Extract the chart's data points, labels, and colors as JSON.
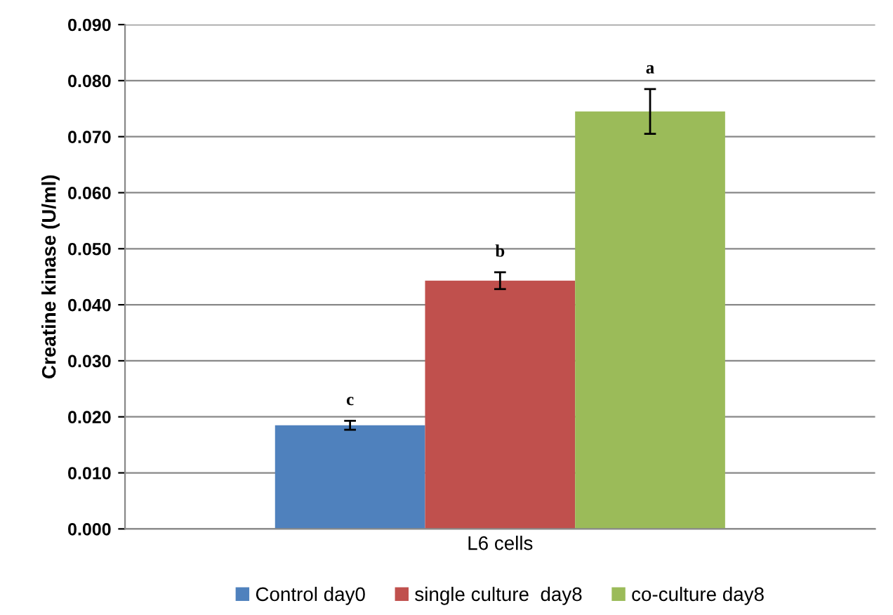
{
  "chart_data": {
    "type": "bar",
    "ylabel": "Creatine kinase (U/ml)",
    "categories": [
      "L6 cells"
    ],
    "series": [
      {
        "name": "Control day0",
        "color": "#4f81bd",
        "values": [
          0.0185
        ],
        "errors": [
          0.0008
        ]
      },
      {
        "name": "single culture  day8",
        "color": "#c0504d",
        "values": [
          0.0443
        ],
        "errors": [
          0.0015
        ]
      },
      {
        "name": "co-culture day8",
        "color": "#9bbb59",
        "values": [
          0.0745
        ],
        "errors": [
          0.004
        ]
      }
    ],
    "annotations": [
      "c",
      "b",
      "a"
    ],
    "ylim": [
      0,
      0.09
    ],
    "yticks": [
      {
        "value": 0,
        "label": "0.000"
      },
      {
        "value": 0.01,
        "label": "0.010"
      },
      {
        "value": 0.02,
        "label": "0.020"
      },
      {
        "value": 0.03,
        "label": "0.030"
      },
      {
        "value": 0.04,
        "label": "0.040"
      },
      {
        "value": 0.05,
        "label": "0.050"
      },
      {
        "value": 0.06,
        "label": "0.060"
      },
      {
        "value": 0.07,
        "label": "0.070"
      },
      {
        "value": 0.08,
        "label": "0.080"
      },
      {
        "value": 0.09,
        "label": "0.090"
      }
    ],
    "grid": "y",
    "legend": "bottom"
  }
}
